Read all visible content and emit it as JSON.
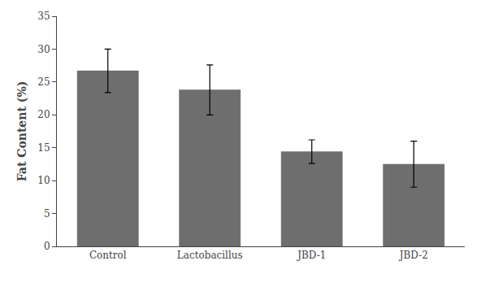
{
  "chart_data": {
    "type": "bar",
    "categories": [
      "Control",
      "Lactobacillus",
      "JBD-1",
      "JBD-2"
    ],
    "values": [
      26.7,
      23.8,
      14.4,
      12.5
    ],
    "errors": [
      3.3,
      3.8,
      1.8,
      3.5
    ],
    "color": "#6e6e6e",
    "ylabel": "Fat Content (%)",
    "ylim": [
      0,
      35
    ],
    "yticks": [
      0,
      5,
      10,
      15,
      20,
      25,
      30,
      35
    ],
    "grid": false
  }
}
